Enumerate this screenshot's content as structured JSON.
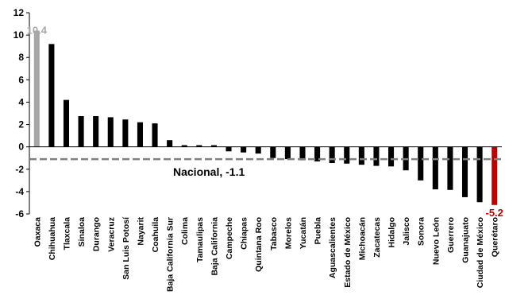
{
  "chart_data": {
    "type": "bar",
    "title": "",
    "xlabel": "",
    "ylabel": "",
    "ylim": [
      -6,
      12
    ],
    "yticks": [
      -6,
      -4,
      -2,
      0,
      2,
      4,
      6,
      8,
      10,
      12
    ],
    "grid": false,
    "legend": "none",
    "categories": [
      "Oaxaca",
      "Chihuahua",
      "Tlaxcala",
      "Sinaloa",
      "Durango",
      "Veracruz",
      "San Luis Potosí",
      "Nayarit",
      "Coahuila",
      "Baja California Sur",
      "Colima",
      "Tamaulipas",
      "Baja California",
      "Campeche",
      "Chiapas",
      "Quintana Roo",
      "Tabasco",
      "Morelos",
      "Yucatán",
      "Puebla",
      "Aguascalientes",
      "Estado de México",
      "Michoacán",
      "Zacatecas",
      "Hidalgo",
      "Jalisco",
      "Sonora",
      "Nuevo León",
      "Guerrero",
      "Guanajuato",
      "Ciudad de México",
      "Querétaro"
    ],
    "values": [
      10.4,
      9.2,
      4.2,
      2.75,
      2.75,
      2.65,
      2.45,
      2.2,
      2.1,
      0.6,
      0.15,
      0.15,
      0.15,
      -0.4,
      -0.5,
      -0.6,
      -1.0,
      -1.1,
      -1.2,
      -1.3,
      -1.45,
      -1.5,
      -1.6,
      -1.7,
      -1.75,
      -2.1,
      -3.0,
      -3.8,
      -3.85,
      -4.5,
      -4.95,
      -5.2
    ],
    "highlight": {
      "max_index": 0,
      "max_label": "10.4",
      "max_color": "#a6a6a6",
      "min_index": 31,
      "min_label": "-5.2",
      "min_color": "#c00000"
    },
    "bar_color": "#000000",
    "reference_line": {
      "label": "Nacional, -1.1",
      "value": -1.1,
      "color": "#808080"
    }
  }
}
